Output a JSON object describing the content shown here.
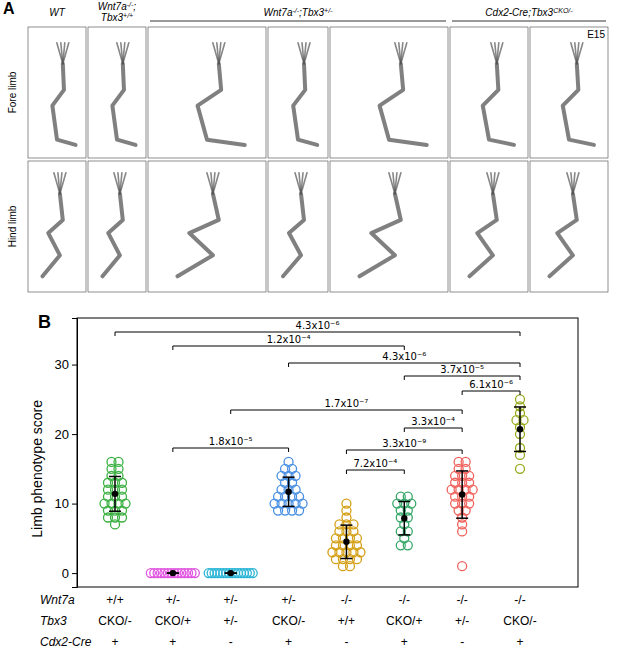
{
  "panel_a": {
    "label": "A",
    "stage": "E15",
    "rows": [
      "Fore limb",
      "Hind limb"
    ],
    "genotype_groups": [
      {
        "label": "WT",
        "panels": 1
      },
      {
        "label": "Wnt7a-/-; Tbx3+/+",
        "panels": 1
      },
      {
        "label": "Wnt7a-/-;Tbx3+/-",
        "panels": 3
      },
      {
        "label": "Cdx2-Cre;Tbx3CKO/-",
        "panels": 2
      }
    ]
  },
  "chart_data": {
    "type": "scatter",
    "panel_label": "B",
    "y_label": "Limb phenotype score",
    "marker": "open-circle",
    "ylim": [
      -2,
      36.7
    ],
    "yticks": [
      0,
      10,
      20,
      30
    ],
    "x_rows": [
      {
        "name": "Wnt7a",
        "labels": [
          "+/+",
          "+/-",
          "+/-",
          "+/-",
          "-/-",
          "-/-",
          "-/-",
          "-/-"
        ]
      },
      {
        "name": "Tbx3",
        "labels": [
          "CKO/-",
          "CKO/+",
          "+/-",
          "CKO/-",
          "+/+",
          "CKO/+",
          "+/-",
          "CKO/-"
        ]
      },
      {
        "name": "Cdx2-Cre",
        "labels": [
          "+",
          "+",
          "-",
          "+",
          "-",
          "+",
          "-",
          "+"
        ]
      }
    ],
    "series": [
      {
        "color": "#3cb043",
        "values": [
          16,
          16,
          15,
          15,
          14,
          14,
          13,
          13,
          13,
          12,
          12,
          12,
          11,
          11,
          11,
          10,
          10,
          10,
          10,
          9,
          9,
          9,
          8,
          8,
          8,
          7
        ],
        "mean": 11.4,
        "sd": 2.5
      },
      {
        "color": "#e055e0",
        "values": [
          0,
          0,
          0,
          0,
          0,
          0,
          0,
          0,
          0,
          0,
          0,
          0,
          0,
          0
        ],
        "mean": 0,
        "sd": 0
      },
      {
        "color": "#2ab5d6",
        "values": [
          0,
          0,
          0,
          0,
          0,
          0,
          0,
          0,
          0,
          0,
          0,
          0,
          0,
          0,
          0,
          0
        ],
        "mean": 0,
        "sd": 0
      },
      {
        "color": "#4a90e2",
        "values": [
          16,
          15,
          15,
          14,
          14,
          14,
          13,
          13,
          12,
          12,
          12,
          11,
          11,
          11,
          11,
          10,
          10,
          10,
          10,
          10,
          9,
          9,
          9,
          9
        ],
        "mean": 11.7,
        "sd": 2.1
      },
      {
        "color": "#d4a017",
        "values": [
          10,
          9,
          8,
          7,
          7,
          7,
          6,
          6,
          6,
          5,
          5,
          5,
          5,
          4,
          4,
          4,
          4,
          3,
          3,
          3,
          3,
          3,
          2,
          2,
          2,
          2,
          1,
          1
        ],
        "mean": 4.5,
        "sd": 2.4
      },
      {
        "color": "#38a86a",
        "values": [
          11,
          11,
          10,
          10,
          10,
          9,
          9,
          8,
          8,
          7,
          6,
          6,
          5,
          4,
          4
        ],
        "mean": 7.9,
        "sd": 2.4
      },
      {
        "color": "#f0625c",
        "values": [
          16,
          16,
          15,
          15,
          14,
          14,
          14,
          13,
          13,
          13,
          12,
          12,
          12,
          12,
          11,
          11,
          11,
          10,
          10,
          10,
          9,
          9,
          8,
          7,
          6,
          1
        ],
        "mean": 11.3,
        "sd": 3.4
      },
      {
        "color": "#9aab1f",
        "values": [
          25,
          24,
          23,
          22,
          22,
          21,
          20,
          18,
          17,
          15
        ],
        "mean": 20.7,
        "sd": 3.2
      }
    ],
    "annotations": [
      {
        "from": 0,
        "to": 7,
        "label": "4.3x10⁻⁶"
      },
      {
        "from": 1,
        "to": 5,
        "label": "1.2x10⁻⁴"
      },
      {
        "from": 3,
        "to": 7,
        "label": "4.3x10⁻⁶"
      },
      {
        "from": 5,
        "to": 7,
        "label": "3.7x10⁻⁵"
      },
      {
        "from": 2,
        "to": 6,
        "label": "1.7x10⁻⁷"
      },
      {
        "from": 6,
        "to": 7,
        "label": "6.1x10⁻⁶"
      },
      {
        "from": 5,
        "to": 6,
        "label": "3.3x10⁻⁴"
      },
      {
        "from": 1,
        "to": 3,
        "label": "1.8x10⁻⁵"
      },
      {
        "from": 4,
        "to": 6,
        "label": "3.3x10⁻⁹"
      },
      {
        "from": 4,
        "to": 5,
        "label": "7.2x10⁻⁴"
      }
    ]
  }
}
